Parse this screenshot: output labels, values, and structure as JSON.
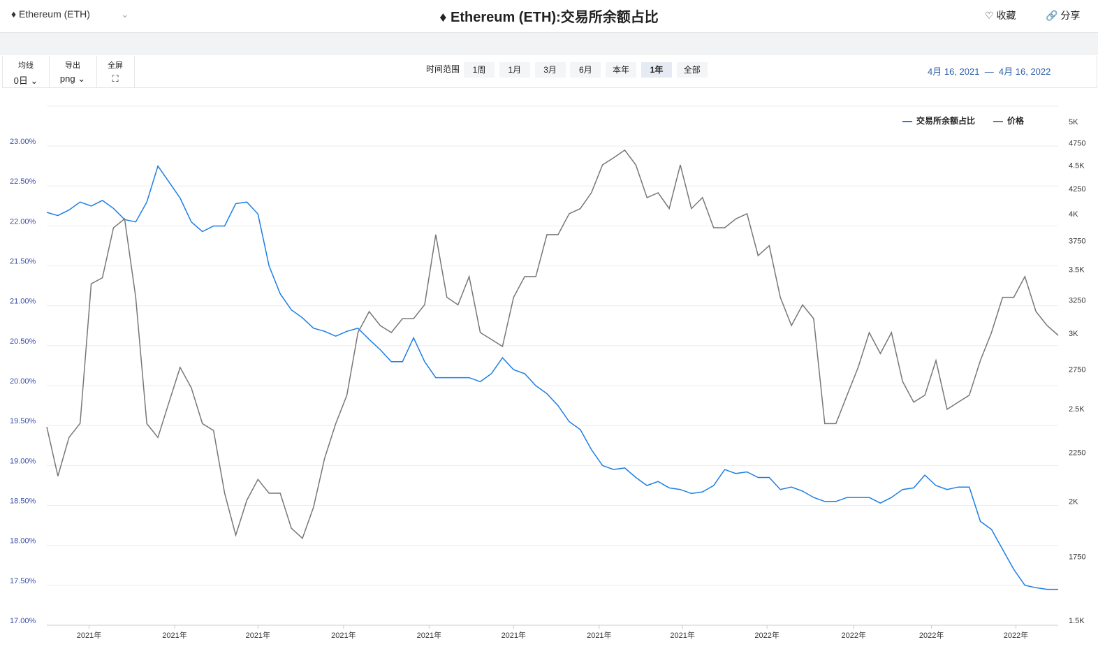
{
  "header": {
    "coin": "Ethereum (ETH)",
    "title": "Ethereum (ETH):交易所余额占比",
    "favorite": "收藏",
    "share": "分享"
  },
  "toolbar": {
    "ma_label": "均线",
    "ma_value": "0日",
    "export_label": "导出",
    "export_value": "png",
    "fullscreen_label": "全屏",
    "range_label": "时间范围",
    "ranges": [
      "1周",
      "1月",
      "3月",
      "6月",
      "本年",
      "1年",
      "全部"
    ],
    "active_range": "1年",
    "date_from": "4月 16, 2021",
    "date_sep": "—",
    "date_to": "4月 16, 2022"
  },
  "chart_data": {
    "type": "line",
    "grid": true,
    "y2log": true,
    "xlim": [
      0,
      91
    ],
    "xticks": [
      {
        "value": 3.8,
        "label": "2021年"
      },
      {
        "value": 11.5,
        "label": "2021年"
      },
      {
        "value": 19,
        "label": "2021年"
      },
      {
        "value": 26.7,
        "label": "2021年"
      },
      {
        "value": 34.4,
        "label": "2021年"
      },
      {
        "value": 42,
        "label": "2021年"
      },
      {
        "value": 49.7,
        "label": "2021年"
      },
      {
        "value": 57.2,
        "label": "2021年"
      },
      {
        "value": 64.8,
        "label": "2022年"
      },
      {
        "value": 72.6,
        "label": "2022年"
      },
      {
        "value": 79.6,
        "label": "2022年"
      },
      {
        "value": 87.2,
        "label": "2022年"
      }
    ],
    "ylim": [
      17,
      23.5
    ],
    "yticks": [
      {
        "value": 17,
        "label": "17.00%"
      },
      {
        "value": 17.5,
        "label": "17.50%"
      },
      {
        "value": 18,
        "label": "18.00%"
      },
      {
        "value": 18.5,
        "label": "18.50%"
      },
      {
        "value": 19,
        "label": "19.00%"
      },
      {
        "value": 19.5,
        "label": "19.50%"
      },
      {
        "value": 20,
        "label": "20.00%"
      },
      {
        "value": 20.5,
        "label": "20.50%"
      },
      {
        "value": 21,
        "label": "21.00%"
      },
      {
        "value": 21.5,
        "label": "21.50%"
      },
      {
        "value": 22,
        "label": "22.00%"
      },
      {
        "value": 22.5,
        "label": "22.50%"
      },
      {
        "value": 23,
        "label": "23.00%"
      }
    ],
    "y2lim": [
      1500,
      5250
    ],
    "y2ticks": [
      {
        "value": 1500,
        "label": "1.5K"
      },
      1750,
      {
        "value": 2000,
        "label": "2K"
      },
      2250,
      {
        "value": 2500,
        "label": "2.5K"
      },
      2750,
      {
        "value": 3000,
        "label": "3K"
      },
      3250,
      {
        "value": 3500,
        "label": "3.5K"
      },
      3750,
      {
        "value": 4000,
        "label": "4K"
      },
      4250,
      {
        "value": 4500,
        "label": "4.5K"
      },
      4750,
      {
        "value": 5000,
        "label": "5K"
      }
    ],
    "series": [
      {
        "name": "交易所余额占比",
        "color": "#1a7ee6",
        "values": [
          22.17,
          22.13,
          22.2,
          22.3,
          22.25,
          22.32,
          22.22,
          22.08,
          22.05,
          22.3,
          22.75,
          22.55,
          22.35,
          22.05,
          21.93,
          22.0,
          22.0,
          22.28,
          22.3,
          22.15,
          21.5,
          21.15,
          20.95,
          20.85,
          20.72,
          20.68,
          20.62,
          20.68,
          20.72,
          20.58,
          20.45,
          20.3,
          20.3,
          20.6,
          20.3,
          20.1,
          20.1,
          20.1,
          20.1,
          20.05,
          20.15,
          20.35,
          20.2,
          20.15,
          20.0,
          19.9,
          19.75,
          19.55,
          19.45,
          19.2,
          19.0,
          18.95,
          18.97,
          18.85,
          18.75,
          18.8,
          18.72,
          18.7,
          18.65,
          18.67,
          18.75,
          18.95,
          18.9,
          18.92,
          18.85,
          18.85,
          18.7,
          18.73,
          18.68,
          18.6,
          18.55,
          18.55,
          18.6,
          18.6,
          18.6,
          18.53,
          18.6,
          18.7,
          18.72,
          18.88,
          18.75,
          18.7,
          18.73,
          18.73,
          18.3,
          18.2,
          17.95,
          17.7,
          17.5,
          17.47,
          17.45,
          17.45
        ]
      },
      {
        "name": "价格",
        "color": "#777777",
        "axis": "y2",
        "values": [
          2421,
          2150,
          2360,
          2442,
          3420,
          3470,
          3915,
          4000,
          3310,
          2440,
          2360,
          2570,
          2795,
          2660,
          2440,
          2400,
          2063,
          1864,
          2028,
          2133,
          2063,
          2063,
          1896,
          1850,
          1995,
          2245,
          2440,
          2613,
          3040,
          3198,
          3092,
          3040,
          3144,
          3144,
          3252,
          3850,
          3310,
          3250,
          3480,
          3040,
          2990,
          2940,
          3310,
          3480,
          3480,
          3850,
          3850,
          4050,
          4100,
          4260,
          4557,
          4635,
          4722,
          4557,
          4210,
          4260,
          4100,
          4557,
          4100,
          4210,
          3915,
          3915,
          4000,
          4050,
          3660,
          3750,
          3310,
          3092,
          3250,
          3144,
          2440,
          2440,
          2613,
          2795,
          3040,
          2890,
          3040,
          2702,
          2570,
          2613,
          2842,
          2526,
          2570,
          2613,
          2842,
          3040,
          3310,
          3310,
          3480,
          3198,
          3092,
          3020
        ]
      }
    ]
  }
}
